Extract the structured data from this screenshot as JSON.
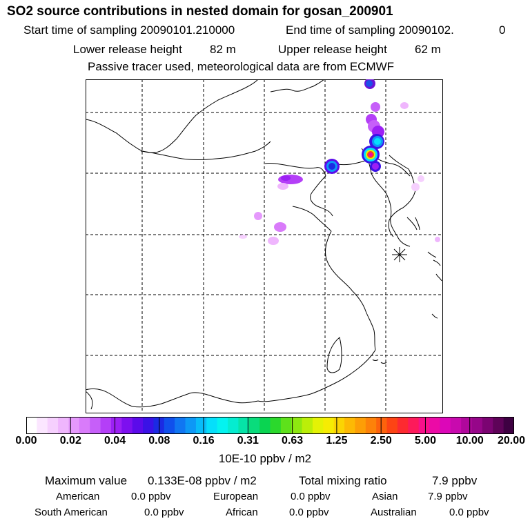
{
  "header": {
    "title": "SO2 source contributions in nested domain for gosan_200901",
    "start_label": "Start time of sampling 20090101.210000",
    "end_label": "End time of sampling 20090102.",
    "end_suffix": "0",
    "lower_label": "Lower release height",
    "lower_value": "82 m",
    "upper_label": "Upper release height",
    "upper_value": "62 m",
    "note": "Passive tracer used, meteorological data are from ECMWF"
  },
  "colorbar": {
    "ticks": [
      "0.00",
      "0.02",
      "0.04",
      "0.08",
      "0.16",
      "0.31",
      "0.63",
      "1.25",
      "2.50",
      "5.00",
      "10.00",
      "20.00"
    ],
    "colors": [
      "#ffffff",
      "#fbe6ff",
      "#f6d0fe",
      "#efb6fd",
      "#e599fc",
      "#d97bfa",
      "#c65ff9",
      "#b43ff7",
      "#9c20f4",
      "#7d10ef",
      "#5b0bea",
      "#3a12e6",
      "#1b2ae3",
      "#1050ec",
      "#1076f2",
      "#0d98f6",
      "#08bcf9",
      "#05dffb",
      "#04f3f0",
      "#05ecd0",
      "#06e4a8",
      "#09dc7c",
      "#0ad451",
      "#2bd82c",
      "#5ee11b",
      "#8ee810",
      "#bbee09",
      "#e4f205",
      "#f6ec03",
      "#fbd403",
      "#fdb904",
      "#fd9e06",
      "#fd8209",
      "#fd630c",
      "#fd4414",
      "#fd2a30",
      "#fd1a5a",
      "#f8108a",
      "#ec0aa6",
      "#dc07b8",
      "#c80aae",
      "#b0089c",
      "#960689",
      "#7b0472",
      "#5e0358",
      "#3e0142"
    ],
    "units": "10E-10 ppbv / m2"
  },
  "stats": {
    "max_label": "Maximum value",
    "max_value": "0.133E-08 ppbv / m2",
    "total_label": "Total mixing ratio",
    "total_value": "7.9 ppbv",
    "regions": [
      {
        "name": "American",
        "value": "0.0 ppbv"
      },
      {
        "name": "European",
        "value": "0.0 ppbv"
      },
      {
        "name": "Asian",
        "value": "7.9 ppbv"
      },
      {
        "name": "South American",
        "value": "0.0 ppbv"
      },
      {
        "name": "African",
        "value": "0.0 ppbv"
      },
      {
        "name": "Australian",
        "value": "0.0 ppbv"
      }
    ]
  },
  "colors": {
    "grid": "#000000",
    "coast": "#000000",
    "station": "#000000"
  }
}
